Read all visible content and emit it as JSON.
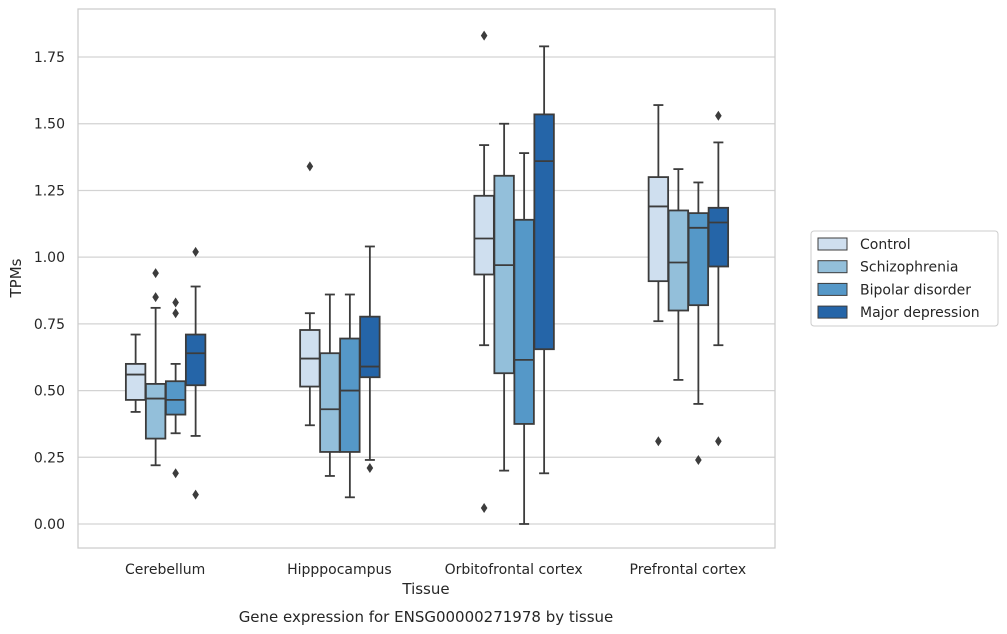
{
  "caption": "Gene expression for ENSG00000271978 by tissue",
  "chart_data": {
    "type": "boxplot",
    "title": "",
    "xlabel": "Tissue",
    "ylabel": "TPMs",
    "ylim": [
      -0.09,
      1.93
    ],
    "yticks": [
      "0.00",
      "0.25",
      "0.50",
      "0.75",
      "1.00",
      "1.25",
      "1.50",
      "1.75"
    ],
    "grid": "horizontal",
    "legend_position": "right",
    "categories": [
      "Cerebellum",
      "Hipppocampus",
      "Orbitofrontal cortex",
      "Prefrontal cortex"
    ],
    "series": [
      {
        "name": "Control",
        "color": "#cfdfef",
        "boxes": [
          {
            "whisker_low": 0.42,
            "q1": 0.465,
            "median": 0.56,
            "q3": 0.6,
            "whisker_high": 0.71,
            "outliers": []
          },
          {
            "whisker_low": 0.37,
            "q1": 0.515,
            "median": 0.62,
            "q3": 0.727,
            "whisker_high": 0.79,
            "outliers": [
              1.34
            ]
          },
          {
            "whisker_low": 0.67,
            "q1": 0.935,
            "median": 1.07,
            "q3": 1.23,
            "whisker_high": 1.42,
            "outliers": [
              0.06,
              1.83
            ]
          },
          {
            "whisker_low": 0.76,
            "q1": 0.91,
            "median": 1.19,
            "q3": 1.3,
            "whisker_high": 1.57,
            "outliers": [
              0.31
            ]
          }
        ]
      },
      {
        "name": "Schizophrenia",
        "color": "#93bfda",
        "boxes": [
          {
            "whisker_low": 0.22,
            "q1": 0.32,
            "median": 0.47,
            "q3": 0.525,
            "whisker_high": 0.81,
            "outliers": [
              0.85,
              0.94
            ]
          },
          {
            "whisker_low": 0.18,
            "q1": 0.27,
            "median": 0.43,
            "q3": 0.64,
            "whisker_high": 0.86,
            "outliers": []
          },
          {
            "whisker_low": 0.2,
            "q1": 0.565,
            "median": 0.97,
            "q3": 1.305,
            "whisker_high": 1.5,
            "outliers": []
          },
          {
            "whisker_low": 0.54,
            "q1": 0.8,
            "median": 0.98,
            "q3": 1.175,
            "whisker_high": 1.33,
            "outliers": []
          }
        ]
      },
      {
        "name": "Bipolar disorder",
        "color": "#5598c8",
        "boxes": [
          {
            "whisker_low": 0.34,
            "q1": 0.41,
            "median": 0.465,
            "q3": 0.535,
            "whisker_high": 0.6,
            "outliers": [
              0.19,
              0.79,
              0.83
            ]
          },
          {
            "whisker_low": 0.1,
            "q1": 0.27,
            "median": 0.5,
            "q3": 0.695,
            "whisker_high": 0.86,
            "outliers": []
          },
          {
            "whisker_low": 0.0,
            "q1": 0.375,
            "median": 0.615,
            "q3": 1.14,
            "whisker_high": 1.39,
            "outliers": []
          },
          {
            "whisker_low": 0.45,
            "q1": 0.82,
            "median": 1.11,
            "q3": 1.165,
            "whisker_high": 1.28,
            "outliers": [
              0.24
            ]
          }
        ]
      },
      {
        "name": "Major depression",
        "color": "#2565a8",
        "boxes": [
          {
            "whisker_low": 0.33,
            "q1": 0.52,
            "median": 0.64,
            "q3": 0.71,
            "whisker_high": 0.89,
            "outliers": [
              0.11,
              1.02
            ]
          },
          {
            "whisker_low": 0.24,
            "q1": 0.55,
            "median": 0.59,
            "q3": 0.777,
            "whisker_high": 1.04,
            "outliers": [
              0.21
            ]
          },
          {
            "whisker_low": 0.19,
            "q1": 0.655,
            "median": 1.36,
            "q3": 1.535,
            "whisker_high": 1.79,
            "outliers": []
          },
          {
            "whisker_low": 0.67,
            "q1": 0.965,
            "median": 1.13,
            "q3": 1.185,
            "whisker_high": 1.43,
            "outliers": [
              0.31,
              1.53
            ]
          }
        ]
      }
    ]
  }
}
